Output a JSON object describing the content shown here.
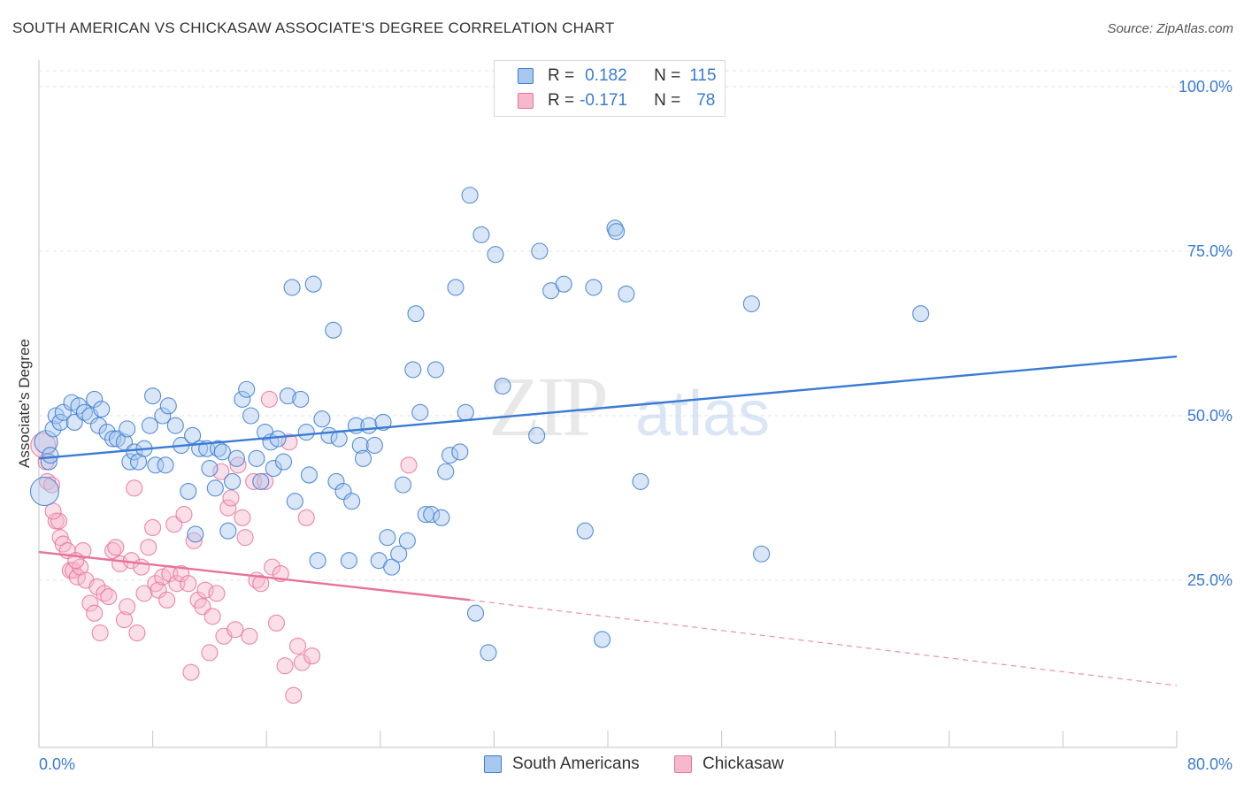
{
  "title": "SOUTH AMERICAN VS CHICKASAW ASSOCIATE'S DEGREE CORRELATION CHART",
  "source": "Source: ZipAtlas.com",
  "watermark": {
    "zip": "ZIP",
    "atlas": "atlas"
  },
  "legend_top": [
    {
      "r_label": "R =",
      "r_value": "0.182",
      "n_label": "N =",
      "n_value": "115"
    },
    {
      "r_label": "R =",
      "r_value": "-0.171",
      "n_label": "N =",
      "n_value": "78"
    }
  ],
  "colors": {
    "south_american": "#3a7bd5",
    "south_american_fill": "#a9c8ee",
    "chickasaw": "#e8729a",
    "chickasaw_fill": "#f6b8cc",
    "value_text": "#3a7bd5",
    "grid": "#e3e3e3"
  },
  "chart_data": {
    "type": "scatter",
    "title": "SOUTH AMERICAN VS CHICKASAW ASSOCIATE'S DEGREE CORRELATION CHART",
    "xlabel": "",
    "ylabel": "Associate's Degree",
    "xlim": [
      0,
      80
    ],
    "ylim": [
      0,
      100
    ],
    "x_tick_labels": [
      "0.0%",
      "80.0%"
    ],
    "y_tick_labels": [
      "100.0%",
      "75.0%",
      "50.0%",
      "25.0%"
    ],
    "y_ticks": [
      100,
      75,
      50,
      25
    ],
    "grid": true,
    "legend_placement": "top-center and bottom",
    "series": [
      {
        "name": "South Americans",
        "r": 0.182,
        "n": 115,
        "trend": {
          "x": [
            0,
            80
          ],
          "y": [
            43.5,
            59.0
          ],
          "dashed_after": null
        },
        "points": [
          [
            0.4,
            38.5
          ],
          [
            0.5,
            46.0
          ],
          [
            0.7,
            43.0
          ],
          [
            1.0,
            48.0
          ],
          [
            1.2,
            50.0
          ],
          [
            1.5,
            49.0
          ],
          [
            1.7,
            50.5
          ],
          [
            2.3,
            52.0
          ],
          [
            2.5,
            49.0
          ],
          [
            2.8,
            51.5
          ],
          [
            3.2,
            50.5
          ],
          [
            3.6,
            50.0
          ],
          [
            3.9,
            52.5
          ],
          [
            4.2,
            48.5
          ],
          [
            4.4,
            51.0
          ],
          [
            4.8,
            47.5
          ],
          [
            5.2,
            46.5
          ],
          [
            5.5,
            46.5
          ],
          [
            6.0,
            46.0
          ],
          [
            6.2,
            48.0
          ],
          [
            6.4,
            43.0
          ],
          [
            6.7,
            44.5
          ],
          [
            7.0,
            43.0
          ],
          [
            7.4,
            45.0
          ],
          [
            7.8,
            48.5
          ],
          [
            8.0,
            53.0
          ],
          [
            8.2,
            42.5
          ],
          [
            8.7,
            50.0
          ],
          [
            8.9,
            42.5
          ],
          [
            9.1,
            51.5
          ],
          [
            9.6,
            48.5
          ],
          [
            10.0,
            45.5
          ],
          [
            10.5,
            38.5
          ],
          [
            10.8,
            47.0
          ],
          [
            11.0,
            32.0
          ],
          [
            11.3,
            45.0
          ],
          [
            11.8,
            45.0
          ],
          [
            12.0,
            42.0
          ],
          [
            12.4,
            39.0
          ],
          [
            12.6,
            45.0
          ],
          [
            12.9,
            44.5
          ],
          [
            13.3,
            32.5
          ],
          [
            13.6,
            40.0
          ],
          [
            13.9,
            43.5
          ],
          [
            14.3,
            52.5
          ],
          [
            14.6,
            54.0
          ],
          [
            14.9,
            50.0
          ],
          [
            15.3,
            43.5
          ],
          [
            15.6,
            40.0
          ],
          [
            15.9,
            47.5
          ],
          [
            16.3,
            46.0
          ],
          [
            16.5,
            42.0
          ],
          [
            16.8,
            46.5
          ],
          [
            17.2,
            43.0
          ],
          [
            17.5,
            53.0
          ],
          [
            17.8,
            69.5
          ],
          [
            18.0,
            37.0
          ],
          [
            18.4,
            52.5
          ],
          [
            18.8,
            47.5
          ],
          [
            19.0,
            41.0
          ],
          [
            19.3,
            70.0
          ],
          [
            19.6,
            28.0
          ],
          [
            19.9,
            49.5
          ],
          [
            20.4,
            47.0
          ],
          [
            20.7,
            63.0
          ],
          [
            20.9,
            40.0
          ],
          [
            21.1,
            46.5
          ],
          [
            21.4,
            38.5
          ],
          [
            21.8,
            28.0
          ],
          [
            22.0,
            37.0
          ],
          [
            22.3,
            48.5
          ],
          [
            22.6,
            45.5
          ],
          [
            22.8,
            43.5
          ],
          [
            23.2,
            48.5
          ],
          [
            23.6,
            45.5
          ],
          [
            23.9,
            28.0
          ],
          [
            24.2,
            49.0
          ],
          [
            24.5,
            31.5
          ],
          [
            24.8,
            27.0
          ],
          [
            25.3,
            29.0
          ],
          [
            25.6,
            39.5
          ],
          [
            25.9,
            31.0
          ],
          [
            26.3,
            57.0
          ],
          [
            26.5,
            65.5
          ],
          [
            26.8,
            50.5
          ],
          [
            27.2,
            35.0
          ],
          [
            27.6,
            35.0
          ],
          [
            27.9,
            57.0
          ],
          [
            28.3,
            34.5
          ],
          [
            28.6,
            41.5
          ],
          [
            28.9,
            44.0
          ],
          [
            29.3,
            69.5
          ],
          [
            29.6,
            44.5
          ],
          [
            30.0,
            50.5
          ],
          [
            30.3,
            83.5
          ],
          [
            30.7,
            20.0
          ],
          [
            31.1,
            77.5
          ],
          [
            31.6,
            14.0
          ],
          [
            32.1,
            74.5
          ],
          [
            32.6,
            54.5
          ],
          [
            35.0,
            47.0
          ],
          [
            35.2,
            75.0
          ],
          [
            36.0,
            69.0
          ],
          [
            36.9,
            70.0
          ],
          [
            38.4,
            32.5
          ],
          [
            39.0,
            69.5
          ],
          [
            39.6,
            16.0
          ],
          [
            40.5,
            78.5
          ],
          [
            40.6,
            78.0
          ],
          [
            41.3,
            68.5
          ],
          [
            42.3,
            40.0
          ],
          [
            50.1,
            67.0
          ],
          [
            50.8,
            29.0
          ],
          [
            62.0,
            65.5
          ],
          [
            0.8,
            44.0
          ]
        ]
      },
      {
        "name": "Chickasaw",
        "r": -0.171,
        "n": 78,
        "trend": {
          "x": [
            0,
            30.3
          ],
          "y": [
            29.3,
            22.0
          ],
          "dashed_to": [
            80,
            9.0
          ]
        },
        "points": [
          [
            0.3,
            45.5
          ],
          [
            0.6,
            40.0
          ],
          [
            0.9,
            39.5
          ],
          [
            1.2,
            34.0
          ],
          [
            1.5,
            31.5
          ],
          [
            1.4,
            34.0
          ],
          [
            1.7,
            30.5
          ],
          [
            2.0,
            29.5
          ],
          [
            2.2,
            26.5
          ],
          [
            2.4,
            26.5
          ],
          [
            2.7,
            25.5
          ],
          [
            2.9,
            27.0
          ],
          [
            3.1,
            29.5
          ],
          [
            3.3,
            25.0
          ],
          [
            3.6,
            21.5
          ],
          [
            3.9,
            20.0
          ],
          [
            4.1,
            24.0
          ],
          [
            4.3,
            17.0
          ],
          [
            4.6,
            23.0
          ],
          [
            4.9,
            22.5
          ],
          [
            5.2,
            29.5
          ],
          [
            5.4,
            30.0
          ],
          [
            5.7,
            27.5
          ],
          [
            6.0,
            19.0
          ],
          [
            6.2,
            21.0
          ],
          [
            6.5,
            28.0
          ],
          [
            6.7,
            39.0
          ],
          [
            6.9,
            17.0
          ],
          [
            7.2,
            27.0
          ],
          [
            7.4,
            23.0
          ],
          [
            7.7,
            30.0
          ],
          [
            8.0,
            33.0
          ],
          [
            8.2,
            24.5
          ],
          [
            8.4,
            23.5
          ],
          [
            8.7,
            25.5
          ],
          [
            9.0,
            22.0
          ],
          [
            9.2,
            26.0
          ],
          [
            9.5,
            33.5
          ],
          [
            9.7,
            24.5
          ],
          [
            10.0,
            26.0
          ],
          [
            10.2,
            35.0
          ],
          [
            10.5,
            24.5
          ],
          [
            10.7,
            11.0
          ],
          [
            10.9,
            31.0
          ],
          [
            11.2,
            22.0
          ],
          [
            11.5,
            21.0
          ],
          [
            11.7,
            23.5
          ],
          [
            12.0,
            14.0
          ],
          [
            12.2,
            19.5
          ],
          [
            12.5,
            23.0
          ],
          [
            12.8,
            41.5
          ],
          [
            13.0,
            16.5
          ],
          [
            13.3,
            36.0
          ],
          [
            13.5,
            37.5
          ],
          [
            13.8,
            17.5
          ],
          [
            14.0,
            42.5
          ],
          [
            14.3,
            34.5
          ],
          [
            14.5,
            31.5
          ],
          [
            14.8,
            16.5
          ],
          [
            15.1,
            40.0
          ],
          [
            15.3,
            25.0
          ],
          [
            15.6,
            24.5
          ],
          [
            15.9,
            40.0
          ],
          [
            16.2,
            52.5
          ],
          [
            16.4,
            27.0
          ],
          [
            16.7,
            18.5
          ],
          [
            17.0,
            26.0
          ],
          [
            17.3,
            12.0
          ],
          [
            17.6,
            46.0
          ],
          [
            17.9,
            7.5
          ],
          [
            18.2,
            15.0
          ],
          [
            18.5,
            12.5
          ],
          [
            18.8,
            34.5
          ],
          [
            19.2,
            13.5
          ],
          [
            26.0,
            42.5
          ],
          [
            0.5,
            43.0
          ],
          [
            1.0,
            35.5
          ],
          [
            2.6,
            28.0
          ]
        ]
      }
    ]
  }
}
